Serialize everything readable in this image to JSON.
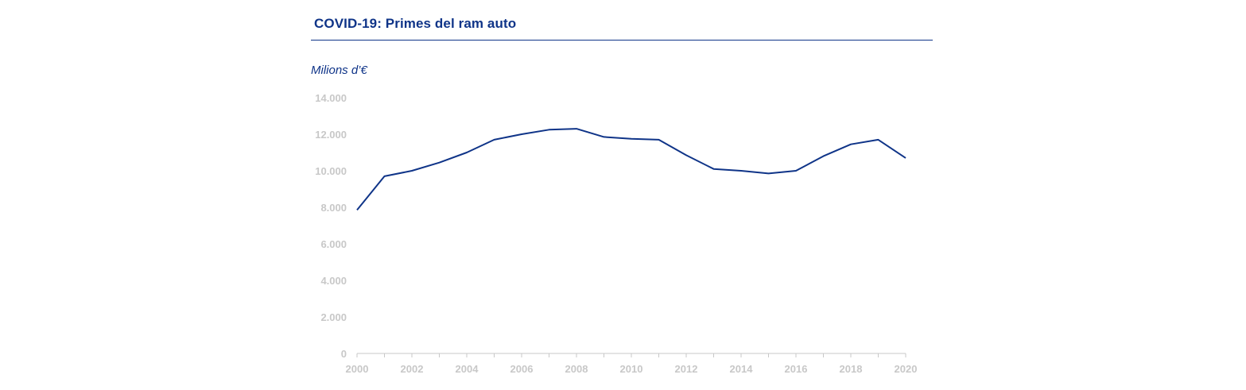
{
  "title": "COVID-19: Primes del ram auto",
  "unit_label": "Milions d’€",
  "colors": {
    "line": "#0f3488",
    "tick_text": "#c8c8c8",
    "axis": "#c8c8c8"
  },
  "chart_data": {
    "type": "line",
    "title": "COVID-19: Primes del ram auto",
    "ylabel": "Milions d’€",
    "xlabel": "",
    "x": [
      2000,
      2001,
      2002,
      2003,
      2004,
      2005,
      2006,
      2007,
      2008,
      2009,
      2010,
      2011,
      2012,
      2013,
      2014,
      2015,
      2016,
      2017,
      2018,
      2019,
      2020
    ],
    "series": [
      {
        "values": [
          7850,
          9700,
          10000,
          10450,
          11000,
          11700,
          12000,
          12250,
          12300,
          11850,
          11750,
          11700,
          10850,
          10100,
          10000,
          9850,
          10000,
          10800,
          11450,
          11700,
          10700
        ]
      }
    ],
    "xticks": [
      "2000",
      "2002",
      "2004",
      "2006",
      "2008",
      "2010",
      "2012",
      "2014",
      "2016",
      "2018",
      "2020"
    ],
    "yticks": [
      "0",
      "2.000",
      "4.000",
      "6.000",
      "8.000",
      "10.000",
      "12.000",
      "14.000"
    ],
    "ytick_values": [
      0,
      2000,
      4000,
      6000,
      8000,
      10000,
      12000,
      14000
    ],
    "xlim": [
      2000,
      2020
    ],
    "ylim": [
      0,
      14000
    ],
    "grid": false,
    "legend": "none"
  }
}
